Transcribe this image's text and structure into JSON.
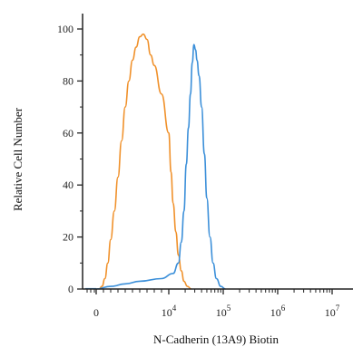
{
  "chart_data": {
    "type": "line",
    "title": "",
    "xlabel": "N-Cadherin (13A9) Biotin",
    "ylabel": "Relative Cell Number",
    "x_scale": "biexponential",
    "ylim": [
      0,
      100
    ],
    "grid": false,
    "legend": "none",
    "x_ticks": [
      {
        "base": "0",
        "exp": ""
      },
      {
        "base": "10",
        "exp": "4"
      },
      {
        "base": "10",
        "exp": "5"
      },
      {
        "base": "10",
        "exp": "6"
      },
      {
        "base": "10",
        "exp": "7"
      }
    ],
    "x_tick_values": [
      0,
      10000,
      100000,
      1000000,
      10000000
    ],
    "y_ticks": [
      "0",
      "20",
      "40",
      "60",
      "80",
      "100"
    ],
    "y_tick_values": [
      0,
      20,
      40,
      60,
      80,
      100
    ],
    "series": [
      {
        "color": "#f0912b",
        "points": [
          [
            400,
            0
          ],
          [
            800,
            1
          ],
          [
            1200,
            4
          ],
          [
            1600,
            10
          ],
          [
            2000,
            19
          ],
          [
            2500,
            30
          ],
          [
            3000,
            43
          ],
          [
            3500,
            57
          ],
          [
            4000,
            70
          ],
          [
            4500,
            80
          ],
          [
            5000,
            88
          ],
          [
            5500,
            93
          ],
          [
            6000,
            97
          ],
          [
            6500,
            98
          ],
          [
            7000,
            96
          ],
          [
            7500,
            90
          ],
          [
            8000,
            86
          ],
          [
            9000,
            75
          ],
          [
            10000,
            60
          ],
          [
            11000,
            45
          ],
          [
            12000,
            33
          ],
          [
            13500,
            22
          ],
          [
            15000,
            13
          ],
          [
            17000,
            7
          ],
          [
            19000,
            3
          ],
          [
            22000,
            1
          ],
          [
            26000,
            0
          ]
        ]
      },
      {
        "color": "#3b8fd9",
        "points": [
          [
            0,
            0
          ],
          [
            2000,
            1
          ],
          [
            4000,
            2
          ],
          [
            6000,
            3
          ],
          [
            9000,
            4
          ],
          [
            12000,
            6
          ],
          [
            15000,
            10
          ],
          [
            17000,
            18
          ],
          [
            19000,
            30
          ],
          [
            21000,
            48
          ],
          [
            23000,
            62
          ],
          [
            25000,
            75
          ],
          [
            27000,
            87
          ],
          [
            29000,
            94
          ],
          [
            31000,
            92
          ],
          [
            33000,
            88
          ],
          [
            36000,
            82
          ],
          [
            40000,
            70
          ],
          [
            45000,
            52
          ],
          [
            50000,
            35
          ],
          [
            57000,
            20
          ],
          [
            65000,
            10
          ],
          [
            75000,
            4
          ],
          [
            90000,
            1
          ],
          [
            110000,
            0
          ]
        ]
      }
    ]
  }
}
